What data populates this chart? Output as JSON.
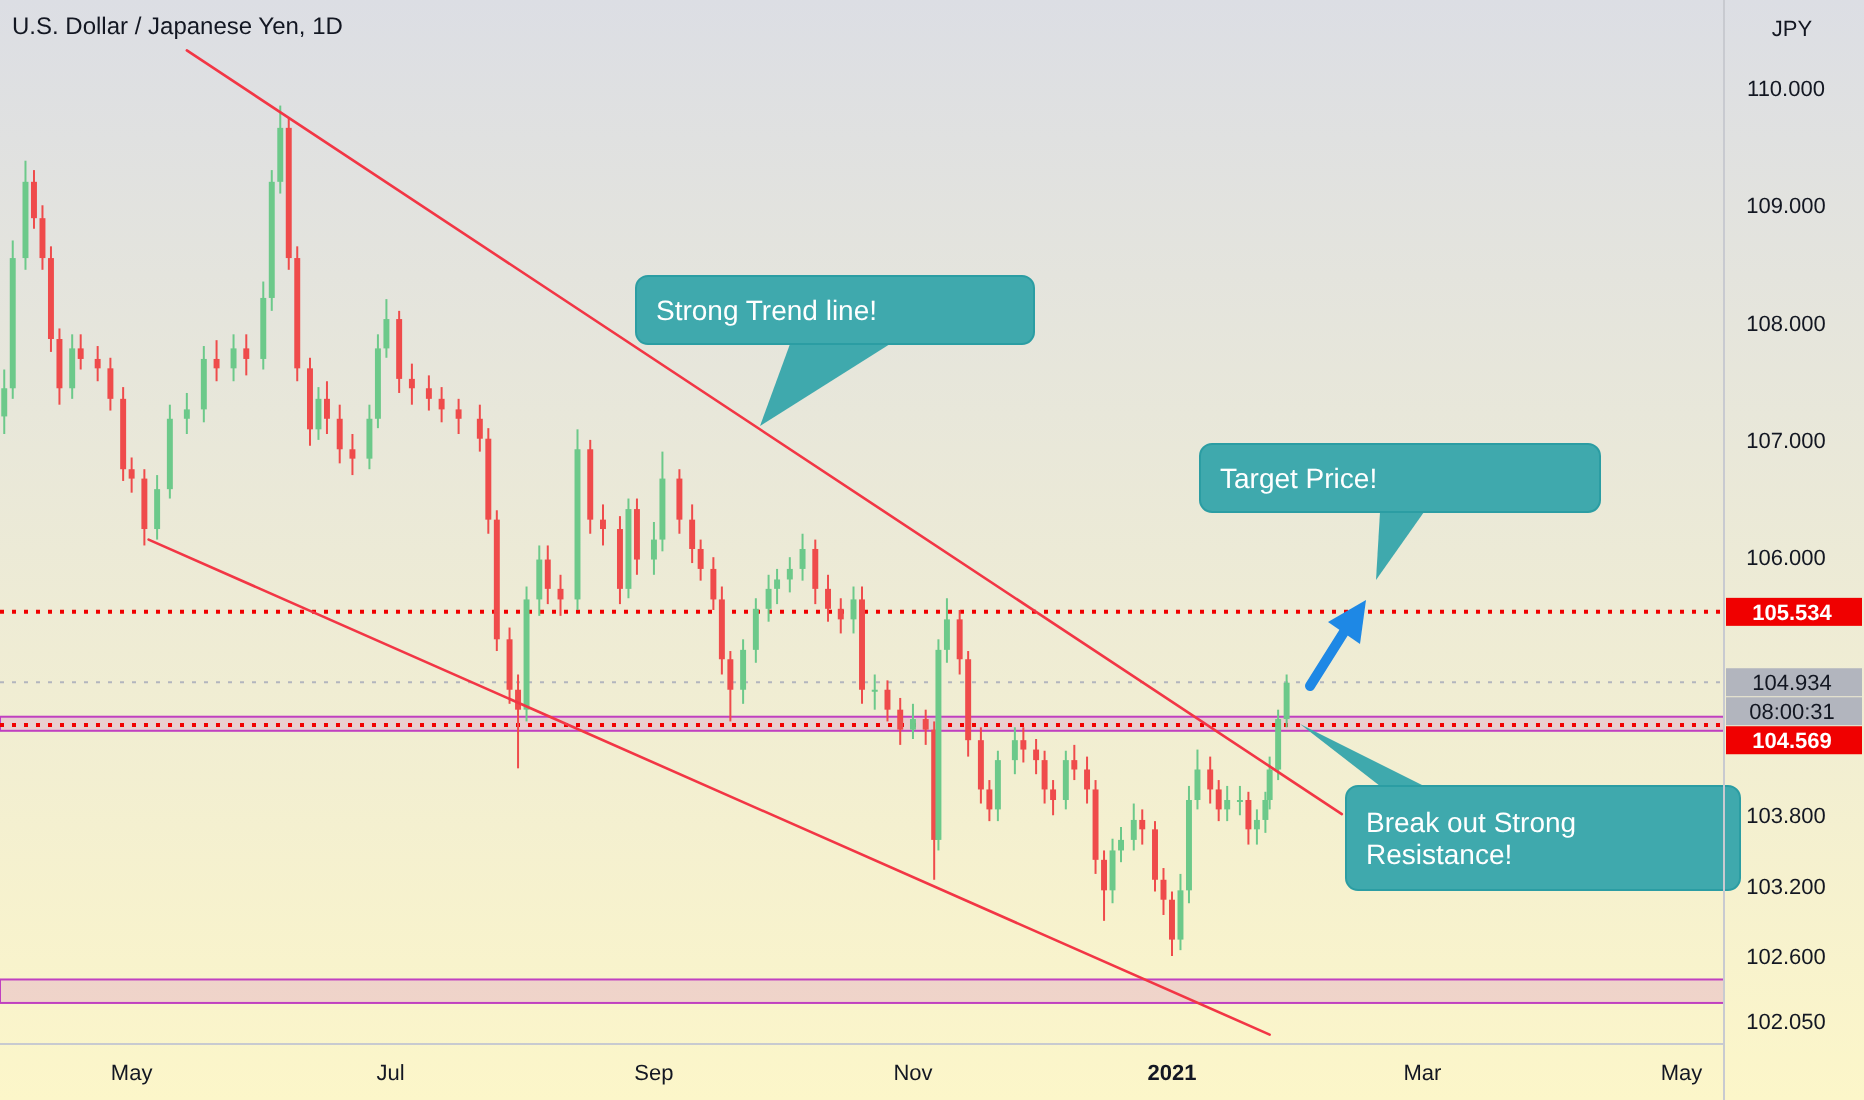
{
  "chart_data": {
    "type": "candlestick",
    "title": "U.S. Dollar / Japanese Yen, 1D",
    "ylabel": "JPY",
    "x": [
      "2020-04-01",
      "2020-04-03",
      "2020-04-06",
      "2020-04-08",
      "2020-04-10",
      "2020-04-12",
      "2020-04-14",
      "2020-04-17",
      "2020-04-19",
      "2020-04-23",
      "2020-04-26",
      "2020-04-29",
      "2020-05-01",
      "2020-05-04",
      "2020-05-07",
      "2020-05-10",
      "2020-05-14",
      "2020-05-18",
      "2020-05-21",
      "2020-05-25",
      "2020-05-28",
      "2020-06-01",
      "2020-06-03",
      "2020-06-05",
      "2020-06-07",
      "2020-06-09",
      "2020-06-12",
      "2020-06-14",
      "2020-06-16",
      "2020-06-19",
      "2020-06-22",
      "2020-06-26",
      "2020-06-28",
      "2020-06-30",
      "2020-07-03",
      "2020-07-06",
      "2020-07-10",
      "2020-07-13",
      "2020-07-17",
      "2020-07-22",
      "2020-07-24",
      "2020-07-26",
      "2020-07-29",
      "2020-07-31",
      "2020-08-02",
      "2020-08-05",
      "2020-08-07",
      "2020-08-10",
      "2020-08-14",
      "2020-08-17",
      "2020-08-20",
      "2020-08-24",
      "2020-08-26",
      "2020-08-28",
      "2020-09-01",
      "2020-09-03",
      "2020-09-07",
      "2020-09-10",
      "2020-09-12",
      "2020-09-15",
      "2020-09-17",
      "2020-09-19",
      "2020-09-22",
      "2020-09-25",
      "2020-09-28",
      "2020-09-30",
      "2020-10-03",
      "2020-10-06",
      "2020-10-09",
      "2020-10-12",
      "2020-10-15",
      "2020-10-18",
      "2020-10-20",
      "2020-10-23",
      "2020-10-26",
      "2020-10-29",
      "2020-11-01",
      "2020-11-04",
      "2020-11-06",
      "2020-11-07",
      "2020-11-09",
      "2020-11-12",
      "2020-11-14",
      "2020-11-17",
      "2020-11-19",
      "2020-11-21",
      "2020-11-25",
      "2020-11-27",
      "2020-11-30",
      "2020-12-02",
      "2020-12-04",
      "2020-12-07",
      "2020-12-09",
      "2020-12-12",
      "2020-12-14",
      "2020-12-16",
      "2020-12-18",
      "2020-12-20",
      "2020-12-23",
      "2020-12-25",
      "2020-12-28",
      "2020-12-30",
      "2021-01-01",
      "2021-01-03",
      "2021-01-05",
      "2021-01-07",
      "2021-01-10",
      "2021-01-12",
      "2021-01-14",
      "2021-01-17",
      "2021-01-19",
      "2021-01-21",
      "2021-01-23",
      "2021-01-24",
      "2021-01-26",
      "2021-01-28"
    ],
    "ohlc": [
      [
        107.2,
        107.6,
        107.05,
        107.44
      ],
      [
        107.44,
        108.7,
        107.35,
        108.55
      ],
      [
        108.55,
        109.38,
        108.45,
        109.2
      ],
      [
        109.2,
        109.3,
        108.8,
        108.89
      ],
      [
        108.89,
        109.0,
        108.45,
        108.55
      ],
      [
        108.55,
        108.65,
        107.75,
        107.86
      ],
      [
        107.86,
        107.95,
        107.3,
        107.44
      ],
      [
        107.44,
        107.9,
        107.35,
        107.78
      ],
      [
        107.78,
        107.9,
        107.6,
        107.69
      ],
      [
        107.69,
        107.8,
        107.5,
        107.61
      ],
      [
        107.61,
        107.7,
        107.25,
        107.35
      ],
      [
        107.35,
        107.45,
        106.65,
        106.75
      ],
      [
        106.75,
        106.85,
        106.55,
        106.67
      ],
      [
        106.67,
        106.75,
        106.1,
        106.24
      ],
      [
        106.24,
        106.7,
        106.15,
        106.58
      ],
      [
        106.58,
        107.3,
        106.5,
        107.18
      ],
      [
        107.18,
        107.4,
        107.05,
        107.26
      ],
      [
        107.26,
        107.8,
        107.15,
        107.69
      ],
      [
        107.69,
        107.85,
        107.5,
        107.61
      ],
      [
        107.61,
        107.9,
        107.5,
        107.78
      ],
      [
        107.78,
        107.9,
        107.55,
        107.69
      ],
      [
        107.69,
        108.35,
        107.6,
        108.21
      ],
      [
        108.21,
        109.3,
        108.1,
        109.2
      ],
      [
        109.2,
        109.85,
        109.1,
        109.66
      ],
      [
        109.66,
        109.75,
        108.45,
        108.55
      ],
      [
        108.55,
        108.65,
        107.5,
        107.61
      ],
      [
        107.61,
        107.7,
        106.95,
        107.09
      ],
      [
        107.09,
        107.45,
        107.0,
        107.35
      ],
      [
        107.35,
        107.5,
        107.05,
        107.18
      ],
      [
        107.18,
        107.3,
        106.8,
        106.92
      ],
      [
        106.92,
        107.05,
        106.7,
        106.84
      ],
      [
        106.84,
        107.3,
        106.75,
        107.18
      ],
      [
        107.18,
        107.9,
        107.1,
        107.78
      ],
      [
        107.78,
        108.2,
        107.7,
        108.03
      ],
      [
        108.03,
        108.1,
        107.4,
        107.52
      ],
      [
        107.52,
        107.65,
        107.3,
        107.44
      ],
      [
        107.44,
        107.55,
        107.25,
        107.35
      ],
      [
        107.35,
        107.45,
        107.15,
        107.26
      ],
      [
        107.26,
        107.35,
        107.05,
        107.18
      ],
      [
        107.18,
        107.3,
        106.9,
        107.01
      ],
      [
        107.01,
        107.1,
        106.2,
        106.32
      ],
      [
        106.32,
        106.4,
        105.2,
        105.3
      ],
      [
        105.3,
        105.4,
        104.75,
        104.87
      ],
      [
        104.87,
        105.0,
        104.2,
        104.7
      ],
      [
        104.7,
        105.75,
        104.6,
        105.64
      ],
      [
        105.64,
        106.1,
        105.5,
        105.98
      ],
      [
        105.98,
        106.1,
        105.6,
        105.73
      ],
      [
        105.73,
        105.85,
        105.5,
        105.64
      ],
      [
        105.64,
        107.09,
        105.55,
        106.92
      ],
      [
        106.92,
        107.0,
        106.2,
        106.32
      ],
      [
        106.32,
        106.45,
        106.1,
        106.24
      ],
      [
        106.24,
        106.35,
        105.6,
        105.73
      ],
      [
        105.73,
        106.5,
        105.65,
        106.41
      ],
      [
        106.41,
        106.5,
        105.85,
        105.98
      ],
      [
        105.98,
        106.3,
        105.85,
        106.15
      ],
      [
        106.15,
        106.9,
        106.05,
        106.67
      ],
      [
        106.67,
        106.75,
        106.2,
        106.32
      ],
      [
        106.32,
        106.45,
        105.95,
        106.07
      ],
      [
        106.07,
        106.15,
        105.8,
        105.9
      ],
      [
        105.9,
        106.0,
        105.55,
        105.64
      ],
      [
        105.64,
        105.75,
        105.0,
        105.13
      ],
      [
        105.13,
        105.2,
        104.6,
        104.87
      ],
      [
        104.87,
        105.3,
        104.75,
        105.21
      ],
      [
        105.21,
        105.65,
        105.1,
        105.56
      ],
      [
        105.56,
        105.85,
        105.45,
        105.73
      ],
      [
        105.73,
        105.9,
        105.6,
        105.81
      ],
      [
        105.81,
        106.0,
        105.7,
        105.9
      ],
      [
        105.9,
        106.2,
        105.8,
        106.07
      ],
      [
        106.07,
        106.15,
        105.6,
        105.73
      ],
      [
        105.73,
        105.85,
        105.45,
        105.56
      ],
      [
        105.56,
        105.65,
        105.35,
        105.47
      ],
      [
        105.47,
        105.75,
        105.35,
        105.64
      ],
      [
        105.64,
        105.75,
        104.75,
        104.87
      ],
      [
        104.87,
        105.0,
        104.7,
        104.87
      ],
      [
        104.87,
        104.95,
        104.6,
        104.7
      ],
      [
        104.7,
        104.8,
        104.4,
        104.53
      ],
      [
        104.53,
        104.75,
        104.45,
        104.62
      ],
      [
        104.62,
        104.7,
        104.4,
        104.53
      ],
      [
        104.53,
        104.6,
        103.25,
        103.59
      ],
      [
        103.59,
        105.3,
        103.5,
        105.21
      ],
      [
        105.21,
        105.65,
        105.1,
        105.47
      ],
      [
        105.47,
        105.55,
        105.0,
        105.13
      ],
      [
        105.13,
        105.2,
        104.3,
        104.44
      ],
      [
        104.44,
        104.55,
        103.9,
        104.02
      ],
      [
        104.02,
        104.1,
        103.75,
        103.85
      ],
      [
        103.85,
        104.35,
        103.75,
        104.27
      ],
      [
        104.27,
        104.55,
        104.15,
        104.44
      ],
      [
        104.44,
        104.55,
        104.25,
        104.36
      ],
      [
        104.36,
        104.45,
        104.15,
        104.27
      ],
      [
        104.27,
        104.35,
        103.9,
        104.02
      ],
      [
        104.02,
        104.1,
        103.8,
        103.93
      ],
      [
        103.93,
        104.35,
        103.85,
        104.27
      ],
      [
        104.27,
        104.4,
        104.1,
        104.19
      ],
      [
        104.19,
        104.3,
        103.9,
        104.02
      ],
      [
        104.02,
        104.1,
        103.3,
        103.42
      ],
      [
        103.42,
        103.5,
        102.9,
        103.16
      ],
      [
        103.16,
        103.6,
        103.05,
        103.5
      ],
      [
        103.5,
        103.7,
        103.4,
        103.59
      ],
      [
        103.59,
        103.9,
        103.5,
        103.76
      ],
      [
        103.76,
        103.85,
        103.55,
        103.68
      ],
      [
        103.68,
        103.75,
        103.15,
        103.25
      ],
      [
        103.25,
        103.35,
        102.95,
        103.08
      ],
      [
        103.08,
        103.15,
        102.6,
        102.74
      ],
      [
        102.74,
        103.3,
        102.65,
        103.16
      ],
      [
        103.16,
        104.05,
        103.05,
        103.93
      ],
      [
        103.93,
        104.36,
        103.85,
        104.19
      ],
      [
        104.19,
        104.3,
        103.9,
        104.02
      ],
      [
        104.02,
        104.1,
        103.75,
        103.85
      ],
      [
        103.85,
        104.05,
        103.75,
        103.93
      ],
      [
        103.93,
        104.05,
        103.8,
        103.93
      ],
      [
        103.93,
        104.0,
        103.55,
        103.68
      ],
      [
        103.68,
        103.85,
        103.55,
        103.76
      ],
      [
        103.76,
        104.0,
        103.65,
        103.93
      ],
      [
        103.93,
        104.3,
        103.85,
        104.19
      ],
      [
        104.19,
        104.7,
        104.1,
        104.62
      ],
      [
        104.62,
        105.0,
        104.55,
        104.93
      ]
    ],
    "series": [
      {
        "type": "line",
        "color": "#f23645",
        "x": [
          "2020-05-14",
          "2021-02-10"
        ],
        "values": [
          110.32,
          103.81
        ]
      },
      {
        "type": "line",
        "color": "#f23645",
        "x": [
          "2020-05-05",
          "2021-01-24"
        ],
        "values": [
          106.15,
          101.93
        ]
      }
    ],
    "xlim": [
      "2020-03-31",
      "2021-05-11"
    ],
    "xticks": [
      {
        "value": "2020-05-01",
        "label": "May"
      },
      {
        "value": "2020-07-01",
        "label": "Jul"
      },
      {
        "value": "2020-09-01",
        "label": "Sep"
      },
      {
        "value": "2020-11-01",
        "label": "Nov"
      },
      {
        "value": "2021-01-01",
        "label": "2021"
      },
      {
        "value": "2021-03-01",
        "label": "Mar"
      },
      {
        "value": "2021-05-01",
        "label": "May"
      }
    ],
    "ylim": [
      101.85,
      110.75
    ],
    "yticks": [
      {
        "value": 110,
        "label": "110.000"
      },
      {
        "value": 109,
        "label": "109.000"
      },
      {
        "value": 108,
        "label": "108.000"
      },
      {
        "value": 107,
        "label": "107.000"
      },
      {
        "value": 106,
        "label": "106.000"
      },
      {
        "value": 103.8,
        "label": "103.800"
      },
      {
        "value": 103.2,
        "label": "103.200"
      },
      {
        "value": 102.6,
        "label": "102.600"
      },
      {
        "value": 102.05,
        "label": "102.050"
      }
    ],
    "ref_lines": [
      {
        "axis": "y",
        "value": 105.534,
        "label": "105.534",
        "color": "#f00000",
        "line_style": "dotted"
      },
      {
        "axis": "y",
        "value": 104.934,
        "label": "104.934",
        "color": "#b2b5be",
        "line_style": "dotted"
      },
      {
        "axis": "y",
        "value": 104.569,
        "label": "104.569",
        "color": "#f00000",
        "line_style": "dotted"
      }
    ],
    "bands": [
      {
        "axis": "y",
        "from": 104.52,
        "to": 104.64,
        "color": "#c040c0"
      },
      {
        "axis": "y",
        "from": 102.2,
        "to": 102.4,
        "color": "#c040c0"
      }
    ],
    "annotations": [
      "Strong Trend line!",
      "Target Price!",
      "Break out Strong Resistance!",
      "08:00:31"
    ],
    "grid": false
  }
}
